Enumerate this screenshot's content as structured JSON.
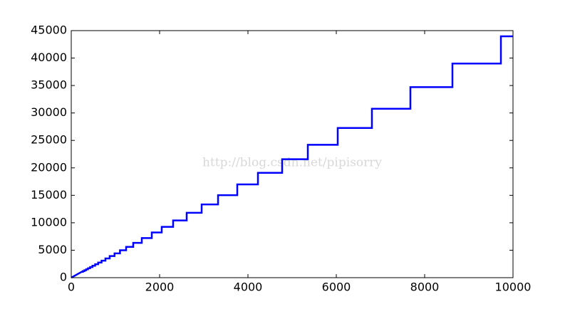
{
  "chart_data": {
    "type": "line",
    "watermark": "http://blog.csdn.net/pipisorry",
    "x": [
      0,
      236,
      265,
      265,
      299,
      299,
      337,
      337,
      379,
      379,
      427,
      427,
      480,
      480,
      541,
      541,
      609,
      609,
      686,
      686,
      773,
      773,
      870,
      870,
      980,
      980,
      1103,
      1103,
      1242,
      1242,
      1403,
      1403,
      1597,
      1597,
      1823,
      1823,
      2048,
      2048,
      2306,
      2306,
      2613,
      2613,
      2952,
      2952,
      3323,
      3323,
      3758,
      3758,
      4226,
      4226,
      4774,
      4774,
      5355,
      5355,
      6032,
      6032,
      6806,
      6806,
      7677,
      7677,
      8629,
      8629,
      9726,
      9726,
      10000
    ],
    "values": [
      0,
      1067,
      1067,
      1198,
      1198,
      1351,
      1351,
      1523,
      1523,
      1713,
      1713,
      1930,
      1930,
      2170,
      2170,
      2445,
      2445,
      2753,
      2753,
      3101,
      3101,
      3494,
      3494,
      3932,
      3932,
      4430,
      4430,
      4986,
      4986,
      5614,
      5614,
      6342,
      6342,
      7218,
      7218,
      8240,
      8240,
      9257,
      9257,
      10423,
      10423,
      11811,
      11811,
      13343,
      13343,
      15020,
      15020,
      16986,
      16986,
      19102,
      19102,
      21578,
      21578,
      24205,
      24205,
      27265,
      27265,
      30763,
      30763,
      34700,
      34700,
      39003,
      39003,
      43962,
      43962
    ],
    "color": "#0000ff",
    "xlim": [
      0,
      10000
    ],
    "xticks": [
      0,
      2000,
      4000,
      6000,
      8000,
      10000
    ],
    "ylim": [
      0,
      45000
    ],
    "yticks": [
      0,
      5000,
      10000,
      15000,
      20000,
      25000,
      30000,
      35000,
      40000,
      45000
    ],
    "grid": false
  }
}
